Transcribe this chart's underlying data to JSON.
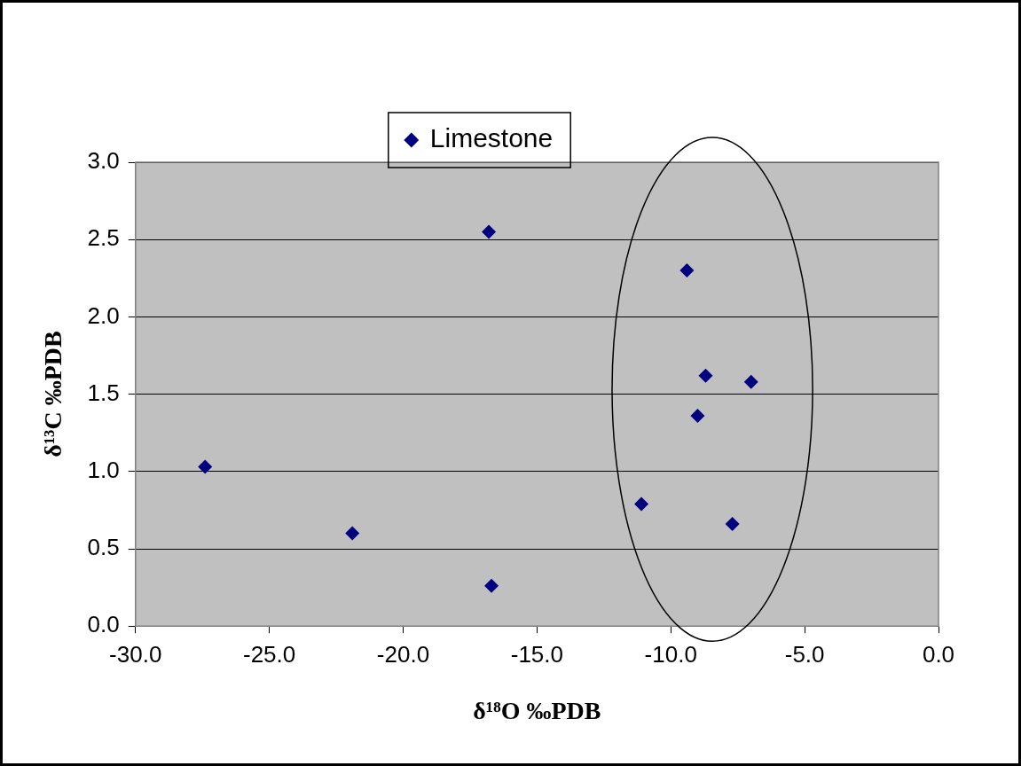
{
  "chart_data": {
    "type": "scatter",
    "xlabel": "δ¹⁸O ‰PDB",
    "ylabel": "δ¹³C ‰PDB",
    "series": [
      {
        "name": "Limestone",
        "color": "#000080",
        "x": [
          -27.4,
          -21.9,
          -16.8,
          -16.7,
          -11.1,
          -9.4,
          -8.7,
          -9.0,
          -7.0,
          -7.7
        ],
        "values": [
          1.03,
          0.6,
          2.55,
          0.26,
          0.79,
          2.3,
          1.62,
          1.36,
          1.58,
          0.66
        ]
      }
    ],
    "xlim": [
      -30,
      0
    ],
    "xticks": [
      {
        "value": -30,
        "label": "-30.0"
      },
      {
        "value": -25,
        "label": "-25.0"
      },
      {
        "value": -20,
        "label": "-20.0"
      },
      {
        "value": -15,
        "label": "-15.0"
      },
      {
        "value": -10,
        "label": "-10.0"
      },
      {
        "value": -5,
        "label": "-5.0"
      },
      {
        "value": 0,
        "label": "0.0"
      }
    ],
    "ylim": [
      0,
      3
    ],
    "yticks": [
      {
        "value": 0,
        "label": "0.0"
      },
      {
        "value": 0.5,
        "label": "0.5"
      },
      {
        "value": 1,
        "label": "1.0"
      },
      {
        "value": 1.5,
        "label": "1.5"
      },
      {
        "value": 2,
        "label": "2.0"
      },
      {
        "value": 2.5,
        "label": "2.5"
      },
      {
        "value": 3,
        "label": "3.0"
      }
    ],
    "grid": "y",
    "legend": "top",
    "marker": "diamond"
  }
}
